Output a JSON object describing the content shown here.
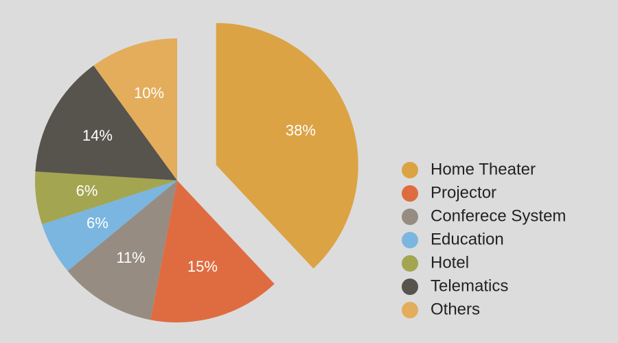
{
  "chart_data": {
    "type": "pie",
    "categories": [
      "Home Theater",
      "Projector",
      "Conferece System",
      "Education",
      "Hotel",
      "Telematics",
      "Others"
    ],
    "values": [
      38,
      15,
      11,
      6,
      6,
      14,
      10
    ],
    "value_labels": [
      "38%",
      "15%",
      "11%",
      "6%",
      "6%",
      "14%",
      "10%"
    ],
    "colors": [
      "#dba344",
      "#df6c40",
      "#968c82",
      "#7ab6e0",
      "#a3a551",
      "#57534d",
      "#e3ad5c"
    ],
    "legend": "right"
  }
}
